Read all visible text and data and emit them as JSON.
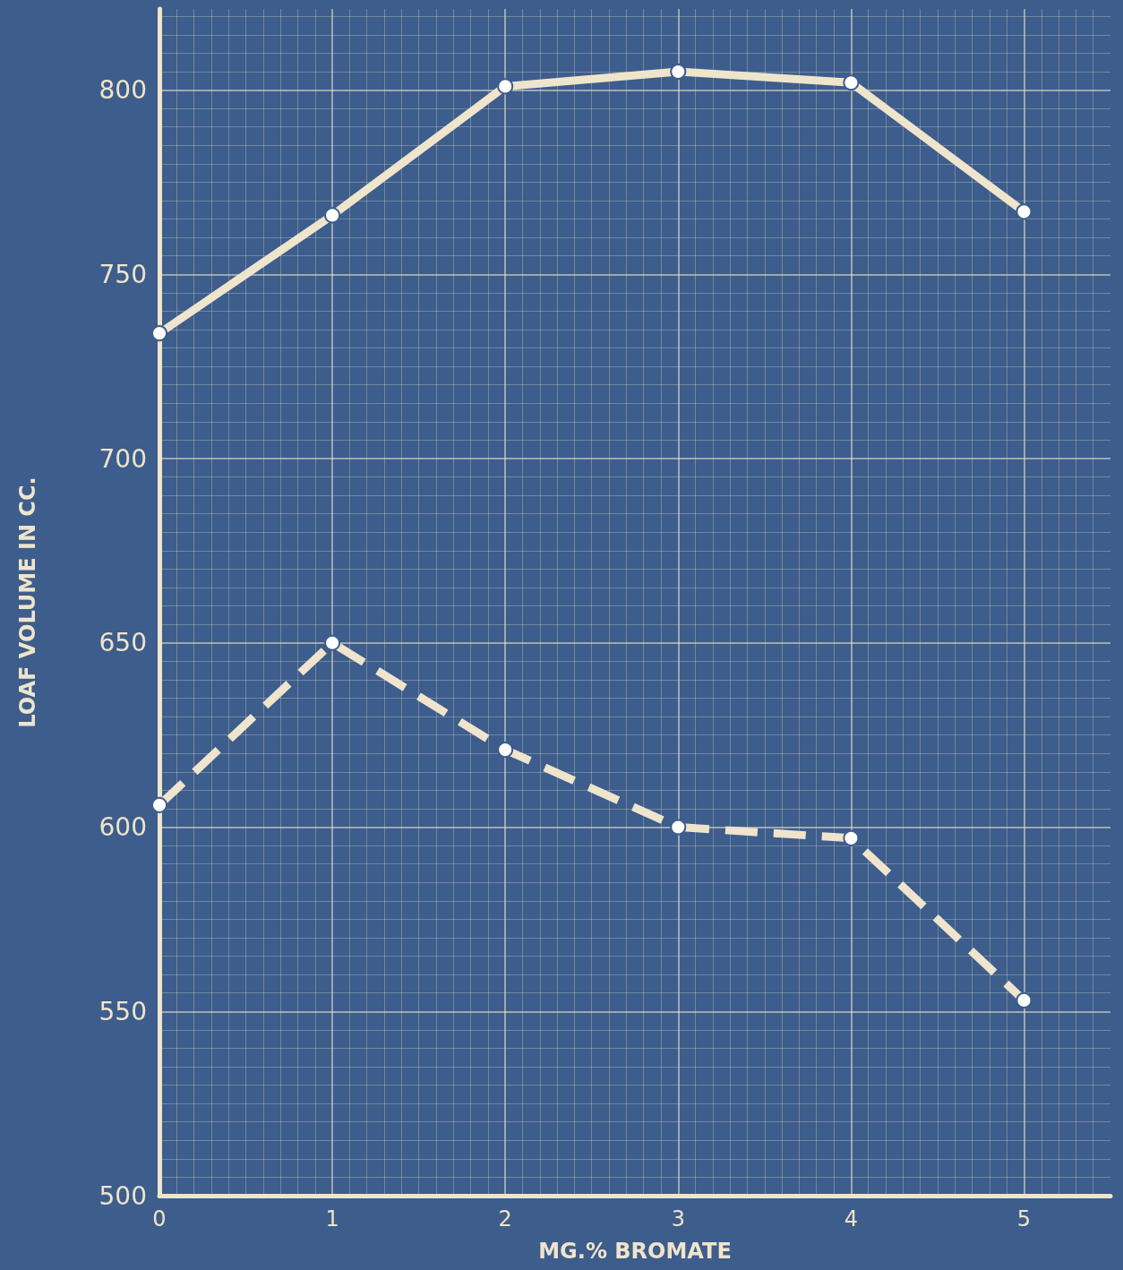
{
  "chart_data": {
    "type": "line",
    "xlabel": "MG.% BROMATE",
    "ylabel": "LOAF VOLUME IN CC.",
    "x": [
      0,
      1,
      2,
      3,
      4,
      5
    ],
    "series": [
      {
        "color": "#efe4cc",
        "line_style": "solid",
        "values": [
          734,
          766,
          801,
          805,
          802,
          767
        ]
      },
      {
        "color": "#efe4cc",
        "line_style": "dashed",
        "values": [
          606,
          650,
          621,
          600,
          597,
          553
        ]
      }
    ],
    "xlim": [
      0,
      5.5
    ],
    "xticks": [
      0,
      1,
      2,
      3,
      4,
      5
    ],
    "ylim": [
      500,
      822
    ],
    "yticks": [
      500,
      550,
      600,
      650,
      700,
      750,
      800
    ],
    "grid": true,
    "marker": "circle"
  }
}
